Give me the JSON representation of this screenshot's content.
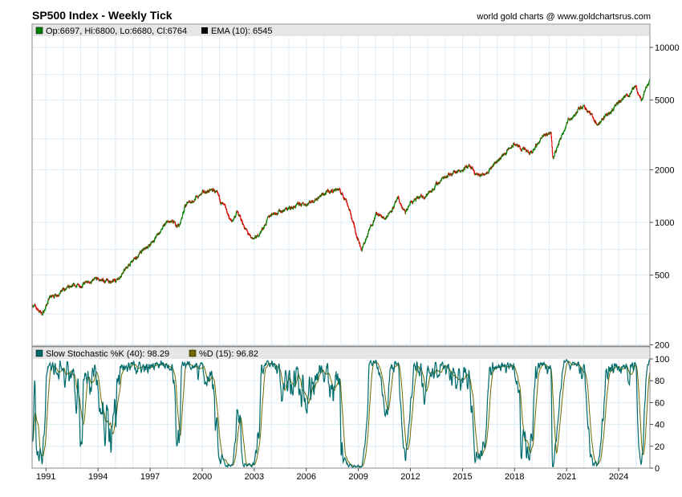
{
  "header": {
    "title": "SP500 Index - Weekly Tick",
    "credit": "world gold charts @ www.goldchartsrus.com"
  },
  "legend": {
    "ohlc": "Op:6697, Hi:6800, Lo:6680, Cl:6764",
    "ema": "EMA (10): 6545",
    "stoch_k": "Slow Stochastic %K (40): 98.29",
    "stoch_d": "%D (15): 96.82"
  },
  "colors": {
    "up": "#008000",
    "down": "#e00000",
    "k": "#006b6b",
    "d": "#6b6b00",
    "grid": "#dcebf5",
    "legend_bg": "#e6e6e6"
  },
  "chart_data": [
    {
      "type": "candlestick",
      "title": "SP500 Index - Weekly Tick",
      "yscale": "log",
      "ylim": [
        200,
        11000
      ],
      "xlim": [
        1990.2,
        2025.8
      ],
      "y_ticks": [
        {
          "v": 10000,
          "label": "10000"
        },
        {
          "v": 5000,
          "label": "5000"
        },
        {
          "v": 2000,
          "label": "2000"
        },
        {
          "v": 1000,
          "label": "1000"
        },
        {
          "v": 500,
          "label": "500"
        },
        {
          "v": 200,
          "label": "200"
        }
      ],
      "x_ticks": [
        {
          "v": 1991,
          "label": "1991"
        },
        {
          "v": 1994,
          "label": "1994"
        },
        {
          "v": 1997,
          "label": "1997"
        },
        {
          "v": 2000,
          "label": "2000"
        },
        {
          "v": 2003,
          "label": "2003"
        },
        {
          "v": 2006,
          "label": "2006"
        },
        {
          "v": 2009,
          "label": "2009"
        },
        {
          "v": 2012,
          "label": "2012"
        },
        {
          "v": 2015,
          "label": "2015"
        },
        {
          "v": 2018,
          "label": "2018"
        },
        {
          "v": 2021,
          "label": "2021"
        },
        {
          "v": 2024,
          "label": "2024"
        }
      ],
      "key_points": [
        [
          1990.2,
          340
        ],
        [
          1990.8,
          300
        ],
        [
          1991.2,
          370
        ],
        [
          1992,
          410
        ],
        [
          1993,
          440
        ],
        [
          1994,
          470
        ],
        [
          1994.9,
          455
        ],
        [
          1996,
          600
        ],
        [
          1997,
          750
        ],
        [
          1998,
          1000
        ],
        [
          1998.7,
          960
        ],
        [
          1999,
          1250
        ],
        [
          2000.2,
          1500
        ],
        [
          2000.7,
          1520
        ],
        [
          2001.3,
          1200
        ],
        [
          2001.7,
          1000
        ],
        [
          2002,
          1150
        ],
        [
          2002.8,
          800
        ],
        [
          2003.2,
          830
        ],
        [
          2004,
          1130
        ],
        [
          2005,
          1200
        ],
        [
          2006,
          1280
        ],
        [
          2007,
          1450
        ],
        [
          2007.8,
          1560
        ],
        [
          2008.3,
          1350
        ],
        [
          2008.9,
          850
        ],
        [
          2009.2,
          700
        ],
        [
          2010,
          1120
        ],
        [
          2010.5,
          1050
        ],
        [
          2011.3,
          1350
        ],
        [
          2011.7,
          1120
        ],
        [
          2012,
          1300
        ],
        [
          2013,
          1450
        ],
        [
          2014,
          1850
        ],
        [
          2015.4,
          2100
        ],
        [
          2015.7,
          1900
        ],
        [
          2016.1,
          1850
        ],
        [
          2017,
          2250
        ],
        [
          2018,
          2800
        ],
        [
          2018.9,
          2450
        ],
        [
          2019.5,
          3000
        ],
        [
          2020.1,
          3300
        ],
        [
          2020.2,
          2300
        ],
        [
          2021,
          3750
        ],
        [
          2022,
          4700
        ],
        [
          2022.8,
          3600
        ],
        [
          2023,
          3850
        ],
        [
          2024,
          4800
        ],
        [
          2025,
          5900
        ],
        [
          2025.3,
          5000
        ],
        [
          2025.8,
          6764
        ]
      ]
    },
    {
      "type": "line",
      "title": "Slow Stochastic",
      "ylim": [
        0,
        100
      ],
      "y_ticks": [
        {
          "v": 100,
          "label": "100"
        },
        {
          "v": 80,
          "label": "80"
        },
        {
          "v": 60,
          "label": "60"
        },
        {
          "v": 40,
          "label": "40"
        },
        {
          "v": 20,
          "label": "20"
        },
        {
          "v": 0,
          "label": "0"
        }
      ],
      "series": [
        {
          "name": "%K (40)",
          "last": 98.29
        },
        {
          "name": "%D (15)",
          "last": 96.82
        }
      ]
    }
  ]
}
